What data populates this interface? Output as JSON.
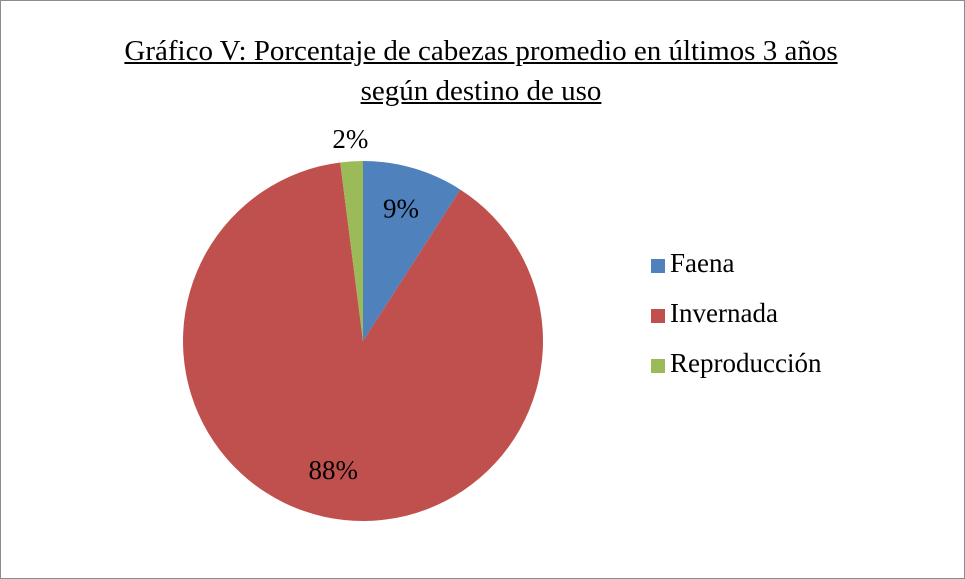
{
  "chart_data": {
    "type": "pie",
    "title": "Gráfico V: Porcentaje de cabezas promedio en últimos 3 años según destino de uso",
    "categories": [
      "Faena",
      "Invernada",
      "Reproducción"
    ],
    "values": [
      9,
      88,
      2
    ],
    "value_labels": [
      "9%",
      "88%",
      "2%"
    ],
    "colors": [
      "#4f81bd",
      "#c0504d",
      "#9bbb59"
    ],
    "legend": "right"
  }
}
